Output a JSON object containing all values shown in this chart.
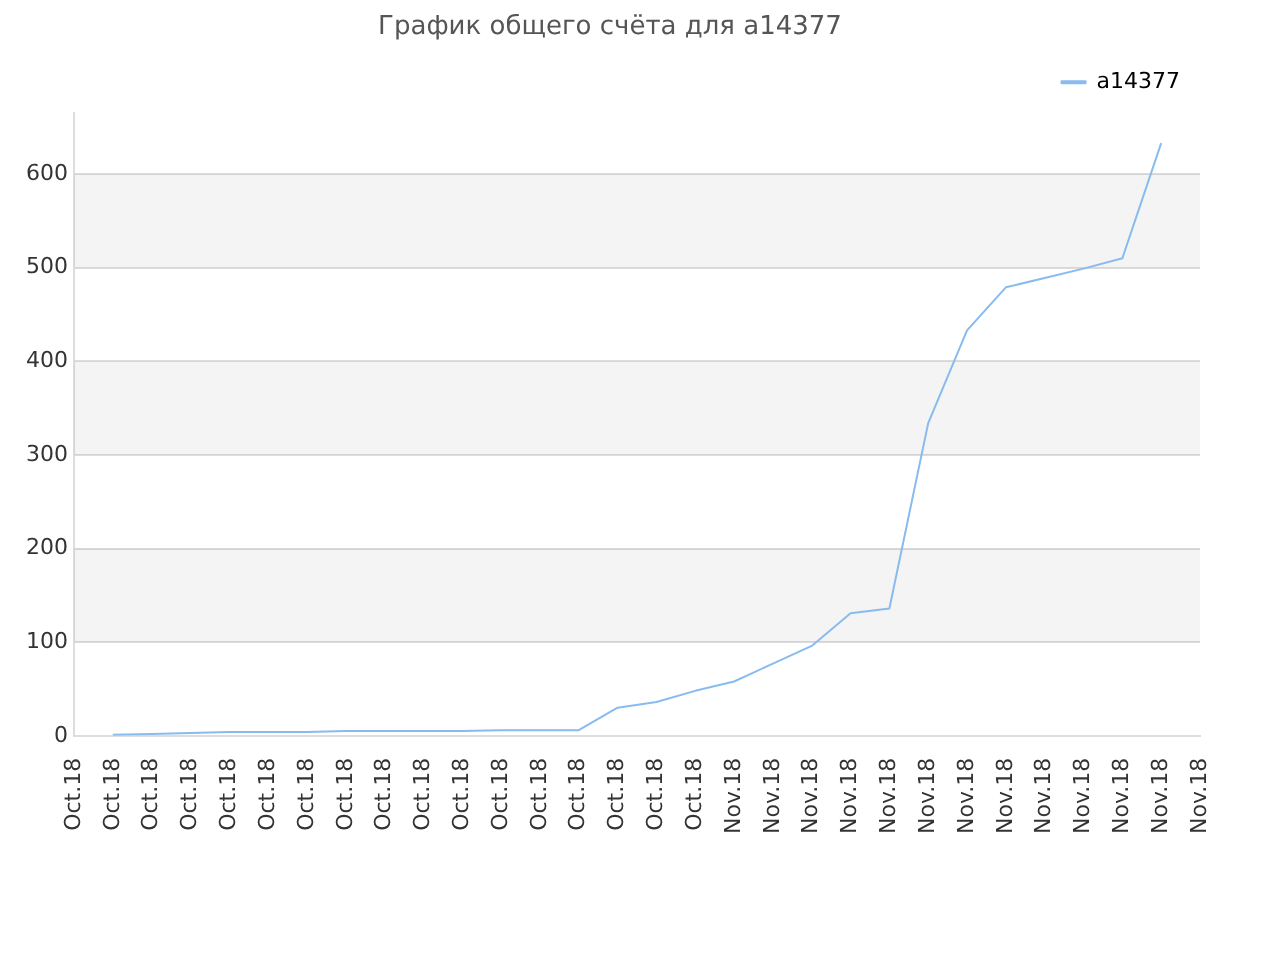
{
  "chart_data": {
    "type": "line",
    "title": "График общего счёта для a14377",
    "categories": [
      "Oct.18",
      "Oct.18",
      "Oct.18",
      "Oct.18",
      "Oct.18",
      "Oct.18",
      "Oct.18",
      "Oct.18",
      "Oct.18",
      "Oct.18",
      "Oct.18",
      "Oct.18",
      "Oct.18",
      "Oct.18",
      "Oct.18",
      "Oct.18",
      "Oct.18",
      "Nov.18",
      "Nov.18",
      "Nov.18",
      "Nov.18",
      "Nov.18",
      "Nov.18",
      "Nov.18",
      "Nov.18",
      "Nov.18",
      "Nov.18",
      "Nov.18",
      "Nov.18",
      "Nov.18"
    ],
    "series": [
      {
        "name": "a14377",
        "color": "#88bbee",
        "values": [
          null,
          1,
          2,
          3,
          4,
          4,
          4,
          5,
          5,
          5,
          5,
          6,
          6,
          6,
          30,
          36,
          48,
          58,
          77,
          96,
          131,
          136,
          334,
          433,
          479,
          489,
          499,
          510,
          633,
          null
        ]
      }
    ],
    "ylim": [
      0,
      665
    ],
    "yticks": [
      0,
      100,
      200,
      300,
      400,
      500,
      600
    ],
    "grid": "y",
    "legend": "top right",
    "marker": "none",
    "line_style": "solid"
  }
}
